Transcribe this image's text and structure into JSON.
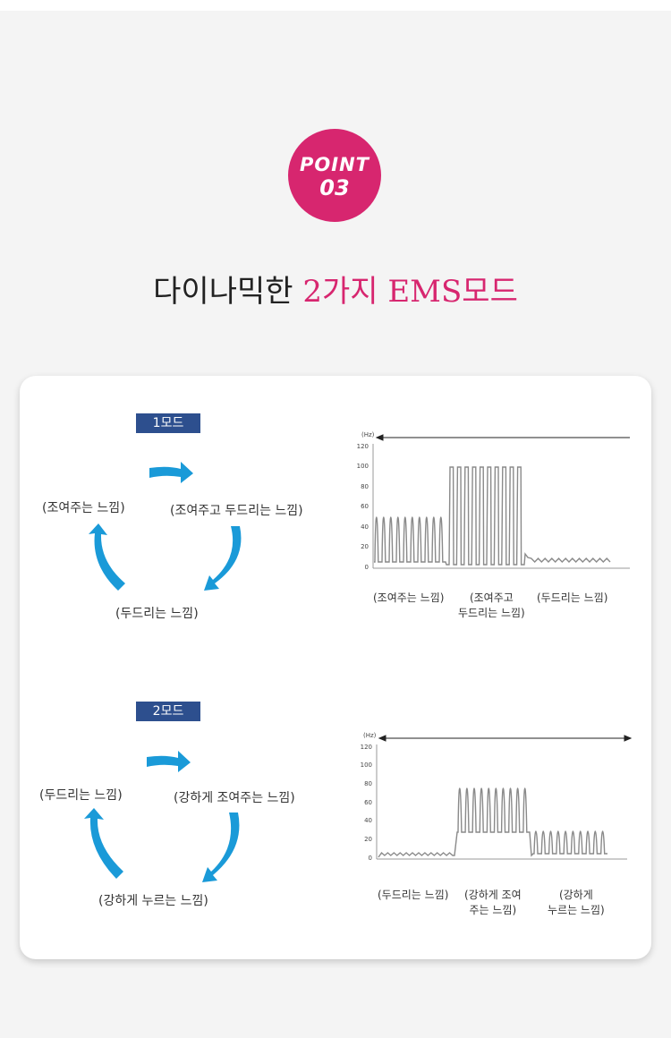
{
  "badge": {
    "line1": "POINT",
    "line2": "03",
    "color": "#d7266f"
  },
  "headline": {
    "prefix": "다이나믹한 ",
    "accent": "2가지 EMS모드"
  },
  "mode1": {
    "label": "1모드",
    "cycle": {
      "left": "(조여주는 느낌)",
      "right": "(조여주고 두드리는 느낌)",
      "bottom": "(두드리는 느낌)"
    },
    "chart": {
      "unit": "(Hz)",
      "yticks": [
        "120",
        "100",
        "80",
        "60",
        "40",
        "20",
        "0"
      ],
      "captions": [
        [
          "(조여주는 느낌)"
        ],
        [
          "(조여주고",
          "두드리는 느낌)"
        ],
        [
          "(두드리는 느낌)"
        ]
      ]
    }
  },
  "mode2": {
    "label": "2모드",
    "cycle": {
      "left": "(두드리는 느낌)",
      "right": "(강하게 조여주는 느낌)",
      "bottom": "(강하게 누르는 느낌)"
    },
    "chart": {
      "unit": "(Hz)",
      "yticks": [
        "120",
        "100",
        "80",
        "60",
        "40",
        "20",
        "0"
      ],
      "captions": [
        [
          "(두드리는 느낌)"
        ],
        [
          "(강하게 조여",
          "주는 느낌)"
        ],
        [
          "(강하게",
          "누르는 느낌)"
        ]
      ]
    }
  },
  "colors": {
    "accent": "#d7266f",
    "modeLabel": "#2d4f8e",
    "arrow": "#1a9ad8",
    "wave": "#8a8a8a"
  }
}
